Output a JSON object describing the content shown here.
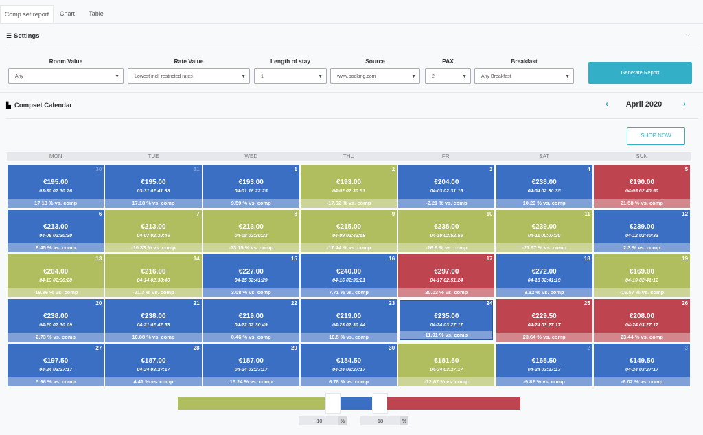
{
  "tabs": [
    "Comp set report",
    "Chart",
    "Table"
  ],
  "settings": {
    "title": "Settings",
    "filters": [
      {
        "label": "Room Value",
        "value": "Any"
      },
      {
        "label": "Rate Value",
        "value": "Lowest incl. restricted rates"
      },
      {
        "label": "Length of stay",
        "value": "1"
      },
      {
        "label": "Source",
        "value": "www.booking.com"
      },
      {
        "label": "PAX",
        "value": "2"
      },
      {
        "label": "Breakfast",
        "value": "Any Breakfast"
      }
    ],
    "button": "Generate Report"
  },
  "calendar": {
    "title": "Compset Calendar",
    "month": "April 2020",
    "shop_button": "SHOP NOW",
    "weekdays": [
      "MON",
      "TUE",
      "WED",
      "THU",
      "FRI",
      "SAT",
      "SUN"
    ],
    "cells": [
      {
        "day": "30",
        "muted": true,
        "price": "€195.00",
        "time": "03-30 02:30:26",
        "diff": "17.18 % vs. comp",
        "color": "#3b6fc3"
      },
      {
        "day": "31",
        "muted": true,
        "price": "€195.00",
        "time": "03-31 02:41:38",
        "diff": "17.18 % vs. comp",
        "color": "#3b6fc3"
      },
      {
        "day": "1",
        "price": "€193.00",
        "time": "04-01 18:22:25",
        "diff": "9.59 % vs. comp",
        "color": "#3b6fc3"
      },
      {
        "day": "2",
        "price": "€193.00",
        "time": "04-02 02:30:51",
        "diff": "-17.62 % vs. comp",
        "color": "#b1be60"
      },
      {
        "day": "3",
        "price": "€204.00",
        "time": "04-03 02:31:15",
        "diff": "-2.21 % vs. comp",
        "color": "#3b6fc3"
      },
      {
        "day": "4",
        "price": "€238.00",
        "time": "04-04 02:30:35",
        "diff": "10.29 % vs. comp",
        "color": "#3b6fc3"
      },
      {
        "day": "5",
        "price": "€190.00",
        "time": "04-05 02:40:50",
        "diff": "21.58 % vs. comp",
        "color": "#be4550"
      },
      {
        "day": "6",
        "price": "€213.00",
        "time": "04-06 02:30:30",
        "diff": "8.45 % vs. comp",
        "color": "#3b6fc3"
      },
      {
        "day": "7",
        "price": "€213.00",
        "time": "04-07 02:30:46",
        "diff": "-10.33 % vs. comp",
        "color": "#b1be60"
      },
      {
        "day": "8",
        "price": "€213.00",
        "time": "04-08 02:30:23",
        "diff": "-13.15 % vs. comp",
        "color": "#b1be60"
      },
      {
        "day": "9",
        "price": "€215.00",
        "time": "04-09 02:43:58",
        "diff": "-17.44 % vs. comp",
        "color": "#b1be60"
      },
      {
        "day": "10",
        "price": "€238.00",
        "time": "04-10 02:52:55",
        "diff": "-16.6 % vs. comp",
        "color": "#b1be60"
      },
      {
        "day": "11",
        "price": "€239.00",
        "time": "04-11 00:07:20",
        "diff": "-21.97 % vs. comp",
        "color": "#b1be60"
      },
      {
        "day": "12",
        "price": "€239.00",
        "time": "04-12 02:40:33",
        "diff": "2.3 % vs. comp",
        "color": "#3b6fc3"
      },
      {
        "day": "13",
        "price": "€204.00",
        "time": "04-13 02:30:20",
        "diff": "-19.86 % vs. comp",
        "color": "#b1be60"
      },
      {
        "day": "14",
        "price": "€216.00",
        "time": "04-14 02:38:40",
        "diff": "-21.3 % vs. comp",
        "color": "#b1be60"
      },
      {
        "day": "15",
        "price": "€227.00",
        "time": "04-15 02:41:29",
        "diff": "3.08 % vs. comp",
        "color": "#3b6fc3"
      },
      {
        "day": "16",
        "price": "€240.00",
        "time": "04-16 02:30:21",
        "diff": "7.71 % vs. comp",
        "color": "#3b6fc3"
      },
      {
        "day": "17",
        "price": "€297.00",
        "time": "04-17 02:51:24",
        "diff": "20.03 % vs. comp",
        "color": "#be4550"
      },
      {
        "day": "18",
        "price": "€272.00",
        "time": "04-18 02:41:19",
        "diff": "8.82 % vs. comp",
        "color": "#3b6fc3"
      },
      {
        "day": "19",
        "price": "€169.00",
        "time": "04-19 02:41:12",
        "diff": "-16.57 % vs. comp",
        "color": "#b1be60"
      },
      {
        "day": "20",
        "price": "€238.00",
        "time": "04-20 02:30:09",
        "diff": "2.73 % vs. comp",
        "color": "#3b6fc3"
      },
      {
        "day": "21",
        "price": "€238.00",
        "time": "04-21 02:42:53",
        "diff": "10.08 % vs. comp",
        "color": "#3b6fc3"
      },
      {
        "day": "22",
        "price": "€219.00",
        "time": "04-22 02:30:49",
        "diff": "0.46 % vs. comp",
        "color": "#3b6fc3"
      },
      {
        "day": "23",
        "price": "€219.00",
        "time": "04-23 02:30:44",
        "diff": "10.5 % vs. comp",
        "color": "#3b6fc3"
      },
      {
        "day": "24",
        "selected": true,
        "price": "€235.00",
        "time": "04-24 03:27:17",
        "diff": "11.91 % vs. comp",
        "color": "#3b6fc3"
      },
      {
        "day": "25",
        "price": "€229.50",
        "time": "04-24 03:27:17",
        "diff": "23.64 % vs. comp",
        "color": "#be4550"
      },
      {
        "day": "26",
        "price": "€208.00",
        "time": "04-24 03:27:17",
        "diff": "23.44 % vs. comp",
        "color": "#be4550"
      },
      {
        "day": "27",
        "price": "€197.50",
        "time": "04-24 03:27:17",
        "diff": "5.96 % vs. comp",
        "color": "#3b6fc3"
      },
      {
        "day": "28",
        "price": "€187.00",
        "time": "04-24 03:27:17",
        "diff": "4.41 % vs. comp",
        "color": "#3b6fc3"
      },
      {
        "day": "29",
        "price": "€187.00",
        "time": "04-24 03:27:17",
        "diff": "15.24 % vs. comp",
        "color": "#3b6fc3"
      },
      {
        "day": "30",
        "price": "€184.50",
        "time": "04-24 03:27:17",
        "diff": "6.78 % vs. comp",
        "color": "#3b6fc3"
      },
      {
        "price": "€181.50",
        "time": "04-24 03:27:17",
        "diff": "-12.67 % vs. comp",
        "color": "#b1be60"
      },
      {
        "day": "2",
        "muted": true,
        "price": "€165.50",
        "time": "04-24 03:27:17",
        "diff": "-9.82 % vs. comp",
        "color": "#3b6fc3"
      },
      {
        "day": "3",
        "muted": true,
        "price": "€149.50",
        "time": "04-24 03:27:17",
        "diff": "-6.02 % vs. comp",
        "color": "#3b6fc3"
      }
    ]
  },
  "legend": {
    "low": "-10",
    "high": "18",
    "unit": "%",
    "colors": [
      "#b1be60",
      "#3b6fc3",
      "#be4550"
    ]
  }
}
